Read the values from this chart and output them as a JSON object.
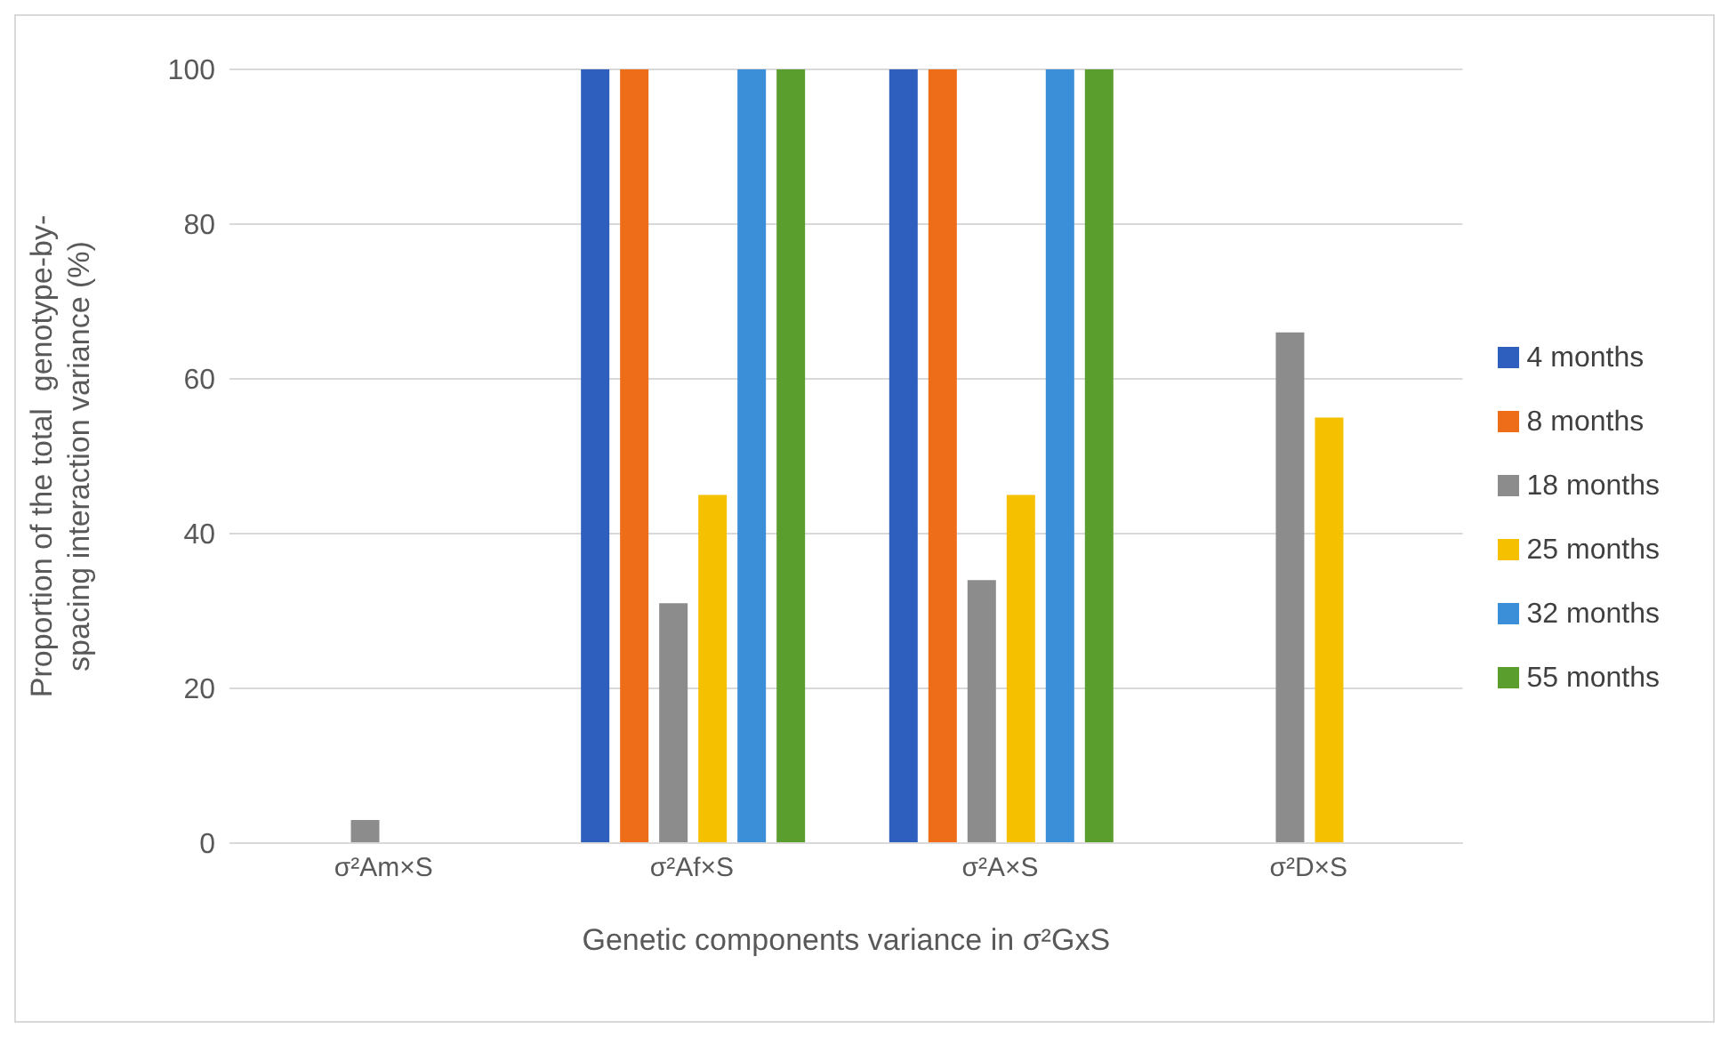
{
  "chart_data": {
    "type": "bar",
    "xlabel": "Genetic components variance in σ²GxS",
    "ylabel": "Proportion of the total  genotype-by-\nspacing interaction variance (%)",
    "categories": [
      "σ²Am×S",
      "σ²Af×S",
      "σ²A×S",
      "σ²D×S"
    ],
    "series": [
      {
        "name": "4 months",
        "color": "#2e5fbf",
        "values": [
          null,
          100,
          100,
          null
        ]
      },
      {
        "name": "8 months",
        "color": "#ed6d19",
        "values": [
          null,
          100,
          100,
          null
        ]
      },
      {
        "name": "18 months",
        "color": "#8c8c8c",
        "values": [
          3,
          31,
          34,
          66
        ]
      },
      {
        "name": "25 months",
        "color": "#f5c000",
        "values": [
          null,
          45,
          45,
          55
        ]
      },
      {
        "name": "32 months",
        "color": "#3a8fd8",
        "values": [
          null,
          100,
          100,
          null
        ]
      },
      {
        "name": "55 months",
        "color": "#5a9e2e",
        "values": [
          null,
          100,
          100,
          null
        ]
      }
    ],
    "ylim": [
      0,
      100
    ],
    "yticks": [
      0,
      20,
      40,
      60,
      80,
      100
    ],
    "grid": "y",
    "legend": "right"
  }
}
